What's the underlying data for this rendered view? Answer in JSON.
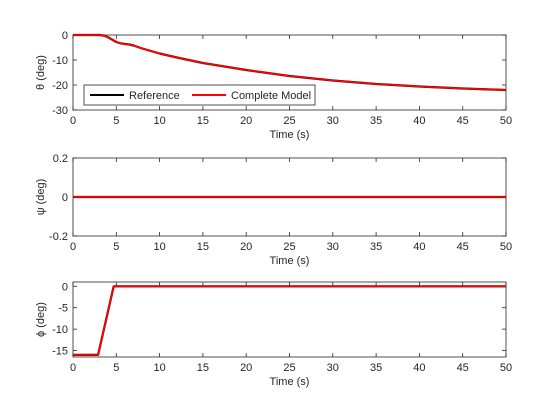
{
  "chart_data": [
    {
      "type": "line",
      "xlabel": "Time (s)",
      "ylabel": "θ (deg)",
      "xlim": [
        0,
        50
      ],
      "ylim": [
        -30,
        0
      ],
      "xticks": [
        "0",
        "5",
        "10",
        "15",
        "20",
        "25",
        "30",
        "35",
        "40",
        "45",
        "50"
      ],
      "yticks": [
        "0",
        "-10",
        "-20",
        "-30"
      ],
      "grid": false,
      "legend": {
        "location": "bottom-left",
        "orientation": "horizontal",
        "entries": [
          "Reference",
          "Complete Model"
        ]
      },
      "series": [
        {
          "name": "Reference",
          "color": "#000000",
          "x": [
            0,
            3,
            3.5,
            4,
            4.5,
            5,
            5.5,
            6,
            6.5,
            7,
            8,
            9,
            10,
            12,
            15,
            20,
            25,
            30,
            35,
            40,
            45,
            50
          ],
          "y": [
            0,
            0,
            -0.2,
            -0.8,
            -1.8,
            -2.8,
            -3.3,
            -3.6,
            -3.8,
            -4.2,
            -5.4,
            -6.4,
            -7.4,
            -9.0,
            -11.2,
            -14.0,
            -16.4,
            -18.2,
            -19.6,
            -20.6,
            -21.4,
            -22.0
          ]
        },
        {
          "name": "Complete Model",
          "color": "#ff0000",
          "x": [
            0,
            3,
            3.5,
            4,
            4.5,
            5,
            5.5,
            6,
            6.5,
            7,
            8,
            9,
            10,
            12,
            15,
            20,
            25,
            30,
            35,
            40,
            45,
            50
          ],
          "y": [
            0,
            0,
            -0.2,
            -0.8,
            -1.8,
            -2.8,
            -3.3,
            -3.6,
            -3.8,
            -4.2,
            -5.4,
            -6.4,
            -7.4,
            -9.0,
            -11.2,
            -14.0,
            -16.4,
            -18.2,
            -19.6,
            -20.6,
            -21.4,
            -22.0
          ]
        }
      ]
    },
    {
      "type": "line",
      "xlabel": "Time (s)",
      "ylabel": "ψ (deg)",
      "xlim": [
        0,
        50
      ],
      "ylim": [
        -0.2,
        0.2
      ],
      "xticks": [
        "0",
        "5",
        "10",
        "15",
        "20",
        "25",
        "30",
        "35",
        "40",
        "45",
        "50"
      ],
      "yticks": [
        "0.2",
        "0",
        "-0.2"
      ],
      "grid": false,
      "series": [
        {
          "name": "Reference",
          "color": "#000000",
          "x": [
            0,
            50
          ],
          "y": [
            0,
            0
          ]
        },
        {
          "name": "Complete Model",
          "color": "#ff0000",
          "x": [
            0,
            50
          ],
          "y": [
            0,
            0
          ]
        }
      ]
    },
    {
      "type": "line",
      "xlabel": "Time (s)",
      "ylabel": "ϕ (deg)",
      "xlim": [
        0,
        50
      ],
      "ylim": [
        -16.5,
        1
      ],
      "xticks": [
        "0",
        "5",
        "10",
        "15",
        "20",
        "25",
        "30",
        "35",
        "40",
        "45",
        "50"
      ],
      "yticks": [
        "0",
        "-5",
        "-10",
        "-15"
      ],
      "grid": false,
      "series": [
        {
          "name": "Reference",
          "color": "#000000",
          "x": [
            0,
            2.9,
            4.7,
            50
          ],
          "y": [
            -16,
            -16,
            0,
            0
          ]
        },
        {
          "name": "Complete Model",
          "color": "#ff0000",
          "x": [
            0,
            2.9,
            4.7,
            50
          ],
          "y": [
            -16,
            -16,
            0,
            0
          ]
        }
      ]
    }
  ]
}
